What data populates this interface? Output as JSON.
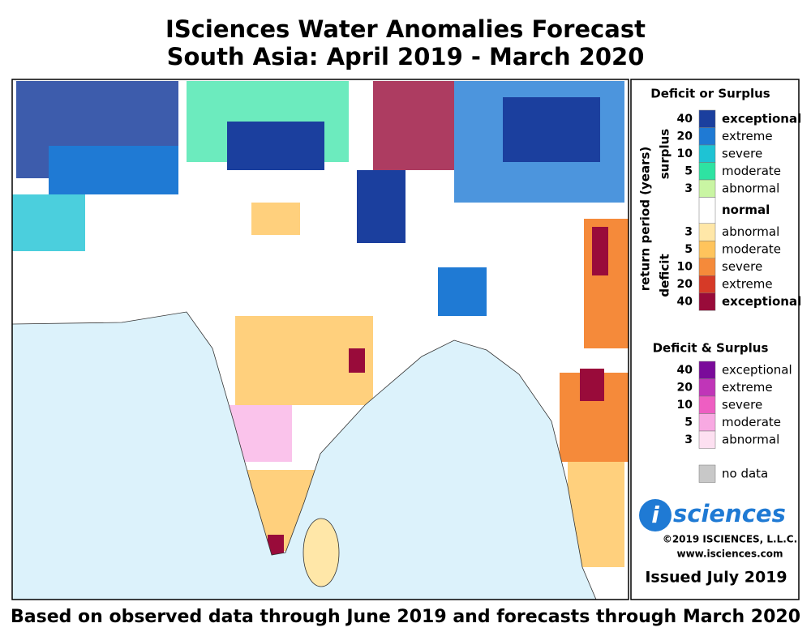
{
  "header": {
    "title": "ISciences Water Anomalies Forecast",
    "subtitle": "South Asia: April 2019 - March 2020"
  },
  "legend": {
    "title": "Deficit or Surplus",
    "axis_label": "return period (years)",
    "surplus_label": "surplus",
    "deficit_label": "deficit",
    "surplus": [
      {
        "period": "40",
        "label": "exceptional",
        "color": "#1b3f9e"
      },
      {
        "period": "20",
        "label": "extreme",
        "color": "#1f7ad4"
      },
      {
        "period": "10",
        "label": "severe",
        "color": "#1ec3d4"
      },
      {
        "period": "5",
        "label": "moderate",
        "color": "#2ee3a2"
      },
      {
        "period": "3",
        "label": "abnormal",
        "color": "#c9f5a3"
      }
    ],
    "normal": {
      "label": "normal",
      "color": "#ffffff"
    },
    "deficit": [
      {
        "period": "3",
        "label": "abnormal",
        "color": "#ffe7a8"
      },
      {
        "period": "5",
        "label": "moderate",
        "color": "#ffc45c"
      },
      {
        "period": "10",
        "label": "severe",
        "color": "#f58a3a"
      },
      {
        "period": "20",
        "label": "extreme",
        "color": "#d63a27"
      },
      {
        "period": "40",
        "label": "exceptional",
        "color": "#990b3a"
      }
    ],
    "both_title": "Deficit & Surplus",
    "both": [
      {
        "period": "40",
        "label": "exceptional",
        "color": "#7a0b9a"
      },
      {
        "period": "20",
        "label": "extreme",
        "color": "#c035b8"
      },
      {
        "period": "10",
        "label": "severe",
        "color": "#ee5ec2"
      },
      {
        "period": "5",
        "label": "moderate",
        "color": "#f8a9e2"
      },
      {
        "period": "3",
        "label": "abnormal",
        "color": "#fde0f1"
      }
    ],
    "no_data": {
      "label": "no data",
      "color": "#c8c8c8"
    }
  },
  "logo": {
    "letter": "i",
    "text": "sciences"
  },
  "copyright": "©2019 ISCIENCES, L.L.C.",
  "url": "www.isciences.com",
  "issued": "Issued July 2019",
  "footer": "Based on observed data through June 2019 and forecasts through March 2020"
}
